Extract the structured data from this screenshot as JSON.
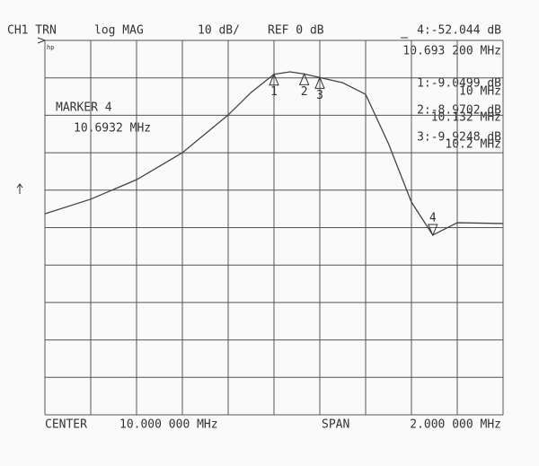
{
  "header": {
    "channel": "CH1 TRN",
    "format": "log MAG",
    "scale": "10 dB/",
    "reference": "REF 0 dB",
    "active_marker": "4:-52.044 dB",
    "active_marker_freq": "10.693 200 MHz"
  },
  "marker_readouts": [
    {
      "value": "1:-9.0499 dB",
      "freq": "10 MHz"
    },
    {
      "value": "2:-8.9702 dB",
      "freq": "10.132 MHz"
    },
    {
      "value": "3:-9.9248 dB",
      "freq": "10.2 MHz"
    }
  ],
  "marker_box": {
    "title": "MARKER 4",
    "freq": "10.6932 MHz"
  },
  "footer": {
    "center_label": "CENTER",
    "center": "10.000 000 MHz",
    "span_label": "SPAN",
    "span": "2.000 000 MHz"
  },
  "logo": "hp",
  "chart_data": {
    "type": "line",
    "x": [
      9.0,
      9.2,
      9.4,
      9.6,
      9.8,
      9.9,
      10.0,
      10.07,
      10.132,
      10.2,
      10.3,
      10.4,
      10.5,
      10.6,
      10.6932,
      10.8,
      11.0
    ],
    "series": [
      {
        "color": "#444444",
        "values": [
          -46.3,
          -42.4,
          -37.2,
          -30,
          -19.9,
          -13.9,
          -9.05,
          -8.4,
          -8.97,
          -9.92,
          -11.3,
          -14.4,
          -27.6,
          -43.2,
          -52.0,
          -48.7,
          -48.9
        ]
      }
    ],
    "markers": {
      "labels": [
        "1",
        "2",
        "3",
        "4"
      ],
      "x": [
        10,
        10.132,
        10.2,
        10.6932
      ],
      "y": [
        -9.0499,
        -8.9702,
        -9.9248,
        -52.044
      ]
    },
    "xlim": [
      9,
      11
    ],
    "ylim": [
      -100,
      0
    ],
    "xticks": [
      9,
      9.2,
      9.4,
      9.6,
      9.8,
      10,
      10.2,
      10.4,
      10.6,
      10.8,
      11
    ],
    "yticks": [
      0,
      -10,
      -20,
      -30,
      -40,
      -50,
      -60,
      -70,
      -80,
      -90,
      -100
    ],
    "grid": true
  }
}
